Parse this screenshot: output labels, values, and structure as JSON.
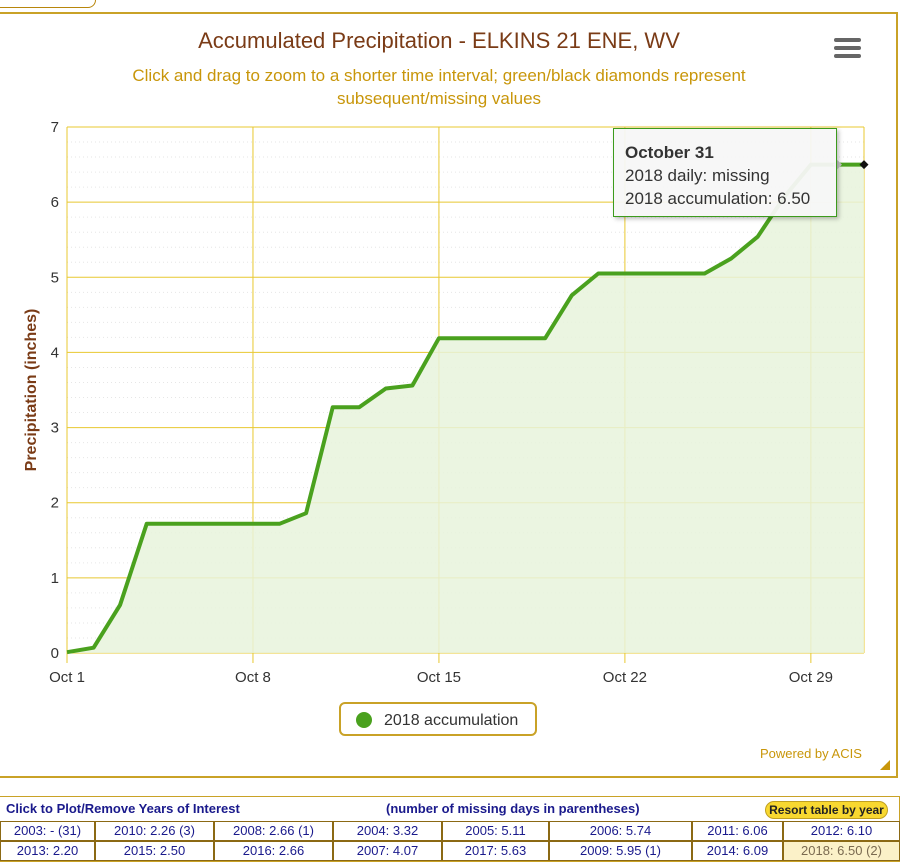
{
  "chart_data": {
    "type": "area",
    "title": "Accumulated Precipitation - ELKINS 21 ENE, WV",
    "subtitle": "Click and drag to zoom to a shorter time interval; green/black diamonds represent subsequent/missing values",
    "ylabel": "Precipitation (inches)",
    "xlabel": "",
    "x_tick_labels": [
      "Oct 1",
      "Oct 8",
      "Oct 15",
      "Oct 22",
      "Oct 29"
    ],
    "x_tick_days": [
      1,
      8,
      15,
      22,
      29
    ],
    "xlim": [
      1,
      31
    ],
    "ylim": [
      0,
      7
    ],
    "y_ticks": [
      0,
      1,
      2,
      3,
      4,
      5,
      6,
      7
    ],
    "grid": true,
    "legend_position": "bottom-center",
    "series": [
      {
        "name": "2018 accumulation",
        "color": "#4aa11e",
        "fill": "#e8f3dc",
        "x": [
          1,
          2,
          3,
          4,
          5,
          6,
          7,
          8,
          9,
          10,
          11,
          12,
          13,
          14,
          15,
          16,
          17,
          18,
          19,
          20,
          21,
          22,
          23,
          24,
          25,
          26,
          27,
          28,
          29,
          30,
          31
        ],
        "values": [
          0.01,
          0.07,
          0.64,
          1.72,
          1.72,
          1.72,
          1.72,
          1.72,
          1.72,
          1.86,
          3.27,
          3.27,
          3.52,
          3.56,
          4.19,
          4.19,
          4.19,
          4.19,
          4.19,
          4.76,
          5.05,
          5.05,
          5.05,
          5.05,
          5.05,
          5.25,
          5.54,
          6.07,
          6.5,
          6.5,
          6.5
        ]
      }
    ],
    "markers": [
      {
        "day": 30,
        "value": 6.5,
        "shape": "diamond",
        "color": "#c8c8c8"
      },
      {
        "day": 31,
        "value": 6.5,
        "shape": "diamond",
        "color": "#111111"
      }
    ]
  },
  "tooltip": {
    "date": "October 31",
    "daily": "2018 daily: missing",
    "accum": "2018 accumulation: 6.50"
  },
  "legend": {
    "label": "2018 accumulation",
    "color": "#4aa11e"
  },
  "credits": "Powered by ACIS",
  "table": {
    "header_left": "Click to Plot/Remove Years of Interest",
    "header_mid": "(number of missing days in parentheses)",
    "resort_label": "Resort table by year",
    "rows": [
      [
        "2003: - (31)",
        "2010: 2.26 (3)",
        "2008: 2.66 (1)",
        "2004: 3.32",
        "2005: 5.11",
        "2006: 5.74",
        "2011: 6.06",
        "2012: 6.10"
      ],
      [
        "2013: 2.20",
        "2015: 2.50",
        "2016: 2.66",
        "2007: 4.07",
        "2017: 5.63",
        "2009: 5.95 (1)",
        "2014: 6.09",
        "2018: 6.50 (2)"
      ]
    ],
    "active_year_label": "2018: 6.50 (2)"
  }
}
